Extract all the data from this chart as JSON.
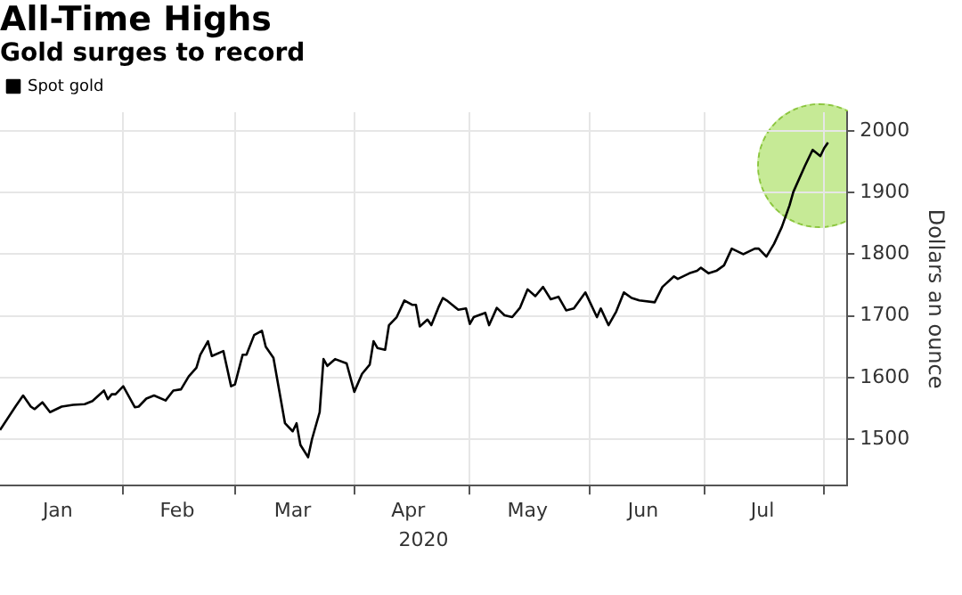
{
  "chart_data": {
    "type": "line",
    "title": "All-Time Highs",
    "subtitle": "Gold surges to record",
    "xlabel": "2020",
    "ylabel": "Dollars an ounce",
    "x": [
      "2019-12-31",
      "2020-01-04",
      "2020-01-06",
      "2020-01-08",
      "2020-01-09",
      "2020-01-11",
      "2020-01-13",
      "2020-01-16",
      "2020-01-19",
      "2020-01-22",
      "2020-01-24",
      "2020-01-27",
      "2020-01-28",
      "2020-01-29",
      "2020-01-30",
      "2020-02-01",
      "2020-02-04",
      "2020-02-05",
      "2020-02-07",
      "2020-02-09",
      "2020-02-12",
      "2020-02-14",
      "2020-02-16",
      "2020-02-18",
      "2020-02-20",
      "2020-02-21",
      "2020-02-23",
      "2020-02-24",
      "2020-02-27",
      "2020-02-29",
      "2020-03-01",
      "2020-03-03",
      "2020-03-04",
      "2020-03-06",
      "2020-03-08",
      "2020-03-09",
      "2020-03-11",
      "2020-03-14",
      "2020-03-16",
      "2020-03-17",
      "2020-03-18",
      "2020-03-20",
      "2020-03-21",
      "2020-03-23",
      "2020-03-24",
      "2020-03-25",
      "2020-03-27",
      "2020-03-30",
      "2020-04-01",
      "2020-04-03",
      "2020-04-05",
      "2020-04-06",
      "2020-04-07",
      "2020-04-09",
      "2020-04-10",
      "2020-04-12",
      "2020-04-14",
      "2020-04-16",
      "2020-04-17",
      "2020-04-18",
      "2020-04-20",
      "2020-04-21",
      "2020-04-23",
      "2020-04-24",
      "2020-04-25",
      "2020-04-28",
      "2020-04-30",
      "2020-05-01",
      "2020-05-02",
      "2020-05-05",
      "2020-05-06",
      "2020-05-08",
      "2020-05-10",
      "2020-05-12",
      "2020-05-14",
      "2020-05-16",
      "2020-05-18",
      "2020-05-20",
      "2020-05-22",
      "2020-05-24",
      "2020-05-26",
      "2020-05-28",
      "2020-05-31",
      "2020-06-03",
      "2020-06-04",
      "2020-06-06",
      "2020-06-08",
      "2020-06-10",
      "2020-06-12",
      "2020-06-14",
      "2020-06-18",
      "2020-06-20",
      "2020-06-23",
      "2020-06-24",
      "2020-06-27",
      "2020-06-29",
      "2020-06-30",
      "2020-07-02",
      "2020-07-04",
      "2020-07-06",
      "2020-07-08",
      "2020-07-11",
      "2020-07-14",
      "2020-07-15",
      "2020-07-17",
      "2020-07-19",
      "2020-07-21",
      "2020-07-23",
      "2020-07-24",
      "2020-07-27",
      "2020-07-29",
      "2020-07-31",
      "2020-08-01",
      "2020-08-02"
    ],
    "series": [
      {
        "name": "Spot gold",
        "color": "#000000",
        "values": [
          1515,
          1553,
          1571,
          1553,
          1549,
          1560,
          1544,
          1553,
          1556,
          1557,
          1562,
          1579,
          1565,
          1573,
          1573,
          1586,
          1552,
          1553,
          1566,
          1571,
          1563,
          1579,
          1581,
          1602,
          1616,
          1637,
          1659,
          1635,
          1643,
          1586,
          1589,
          1637,
          1637,
          1669,
          1676,
          1650,
          1632,
          1526,
          1513,
          1526,
          1491,
          1471,
          1500,
          1544,
          1630,
          1619,
          1630,
          1623,
          1577,
          1606,
          1621,
          1659,
          1648,
          1645,
          1685,
          1698,
          1725,
          1718,
          1718,
          1683,
          1694,
          1685,
          1716,
          1729,
          1725,
          1710,
          1712,
          1687,
          1698,
          1705,
          1685,
          1713,
          1701,
          1698,
          1713,
          1743,
          1732,
          1747,
          1727,
          1731,
          1709,
          1712,
          1738,
          1698,
          1712,
          1685,
          1707,
          1738,
          1729,
          1725,
          1722,
          1747,
          1764,
          1760,
          1769,
          1773,
          1778,
          1769,
          1773,
          1782,
          1809,
          1800,
          1809,
          1809,
          1796,
          1817,
          1844,
          1879,
          1901,
          1943,
          1969,
          1959,
          1972,
          1981
        ]
      }
    ],
    "xlim": [
      "2019-12-31",
      "2020-08-07"
    ],
    "xticks": [
      {
        "value": "2020-01-15",
        "label": "Jan"
      },
      {
        "value": "2020-02-01",
        "label": null
      },
      {
        "value": "2020-02-15",
        "label": "Feb"
      },
      {
        "value": "2020-03-01",
        "label": null
      },
      {
        "value": "2020-03-16",
        "label": "Mar"
      },
      {
        "value": "2020-04-01",
        "label": null
      },
      {
        "value": "2020-04-15",
        "label": "Apr"
      },
      {
        "value": "2020-05-01",
        "label": null
      },
      {
        "value": "2020-05-16",
        "label": "May"
      },
      {
        "value": "2020-06-01",
        "label": null
      },
      {
        "value": "2020-06-15",
        "label": "Jun"
      },
      {
        "value": "2020-07-01",
        "label": null
      },
      {
        "value": "2020-07-16",
        "label": "Jul"
      },
      {
        "value": "2020-08-01",
        "label": null
      }
    ],
    "ylim": [
      1425,
      2030
    ],
    "yticks": [
      1500,
      1600,
      1700,
      1800,
      1900,
      2000
    ],
    "grid": true,
    "legend": "top left",
    "marker": "none",
    "line_style": "solid"
  }
}
